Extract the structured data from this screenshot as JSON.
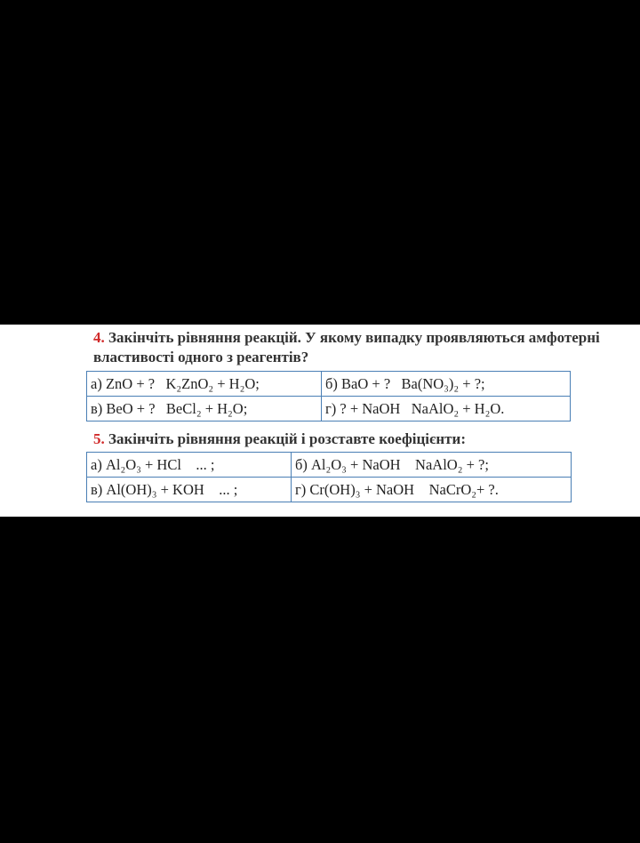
{
  "task4": {
    "number": "4.",
    "text": "Закінчіть рівняння реакцій. У якому випадку проявляються амфотерні властивості одного з реагентів?",
    "table": {
      "rows": [
        [
          "а) ZnO + ?   K₂ZnO₂ + H₂O;",
          "б) BaO + ?   Ba(NO₃)₂ + ?;"
        ],
        [
          "в) BeO + ?   BeCl₂ + H₂O;",
          "г) ? + NaOH   NaAlO₂ + H₂O."
        ]
      ]
    }
  },
  "task5": {
    "number": "5.",
    "text": "Закінчіть рівняння реакцій і розставте коефіцієнти:",
    "table": {
      "rows": [
        [
          "а) Al₂O₃ + HCl    ... ;",
          "б) Al₂O₃ + NaOH    NaAlO₂ + ?;"
        ],
        [
          "в) Al(OH)₃ + KOH    ... ;",
          "г) Cr(OH)₃ + NaOH    NaCrO₂+ ?."
        ]
      ]
    }
  }
}
